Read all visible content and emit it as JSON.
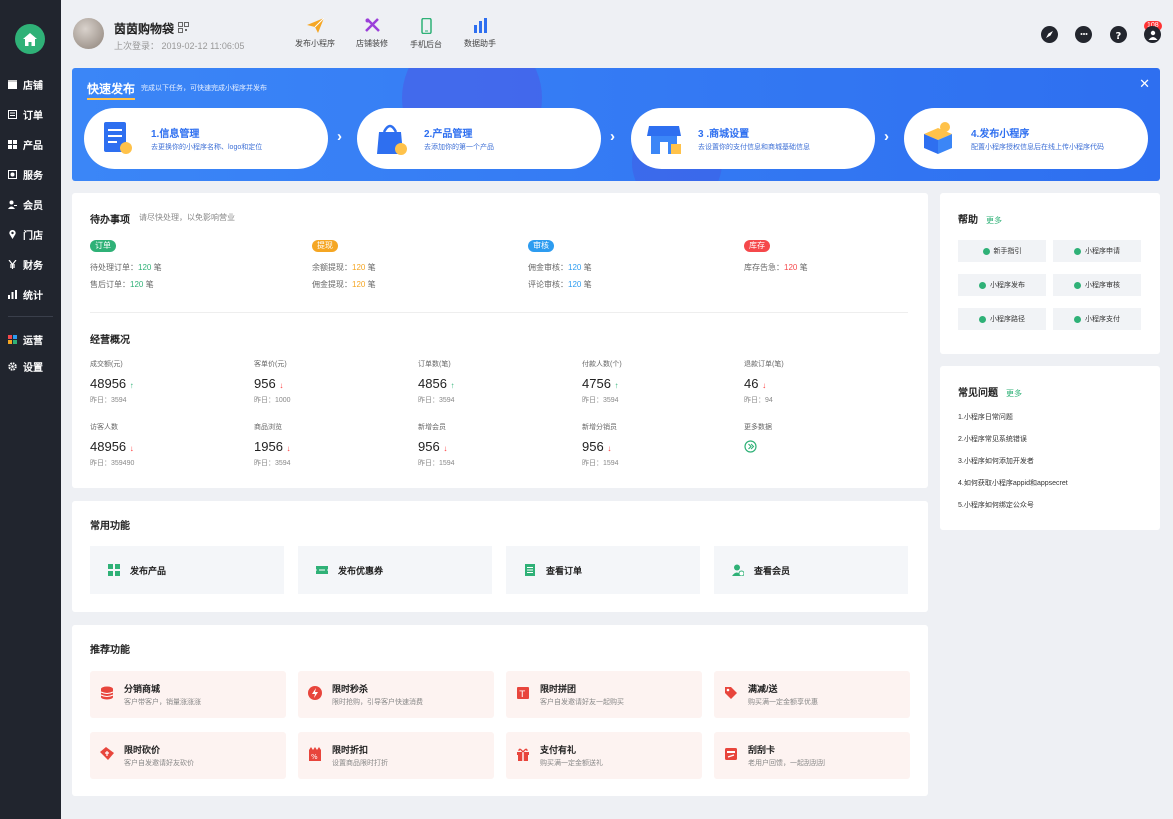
{
  "app": {
    "store_name": "茵茵购物袋",
    "last_login_label": "上次登录：",
    "last_login_time": "2019-02-12 11:06:05"
  },
  "sidebar": {
    "items": [
      {
        "label": "店铺"
      },
      {
        "label": "订单"
      },
      {
        "label": "产品"
      },
      {
        "label": "服务"
      },
      {
        "label": "会员"
      },
      {
        "label": "门店"
      },
      {
        "label": "财务"
      },
      {
        "label": "统计"
      },
      {
        "label": "运营"
      },
      {
        "label": "设置"
      }
    ]
  },
  "toolbar": {
    "items": [
      {
        "label": "发布小程序",
        "icon": "send-icon"
      },
      {
        "label": "店铺装修",
        "icon": "tools-icon"
      },
      {
        "label": "手机后台",
        "icon": "phone-icon"
      },
      {
        "label": "数据助手",
        "icon": "bar-chart-icon"
      }
    ],
    "message_badge": "108"
  },
  "banner": {
    "title": "快速发布",
    "subtitle": "完成以下任务，可快速完成小程序并发布",
    "close": "✕",
    "steps": [
      {
        "title": "1.信息管理",
        "desc": "去更换你的小程序名称、logo和定位"
      },
      {
        "title": "2.产品管理",
        "desc": "去添加你的第一个产品"
      },
      {
        "title": "3 .商城设置",
        "desc": "去设置你的支付信息和商城基础信息"
      },
      {
        "title": "4.发布小程序",
        "desc": "配置小程序授权信息后在线上传小程序代码"
      }
    ]
  },
  "todo": {
    "title": "待办事项",
    "hint": "请尽快处理，以免影响营业",
    "groups": [
      {
        "tag": "订单",
        "lines": [
          {
            "label": "待处理订单：",
            "value": "120",
            "unit": " 笔"
          },
          {
            "label": "售后订单：",
            "value": "120",
            "unit": " 笔"
          }
        ]
      },
      {
        "tag": "提现",
        "lines": [
          {
            "label": "余额提现：",
            "value": "120",
            "unit": " 笔"
          },
          {
            "label": "佣金提现：",
            "value": "120",
            "unit": " 笔"
          }
        ]
      },
      {
        "tag": "审核",
        "lines": [
          {
            "label": "佣金审核：",
            "value": "120",
            "unit": " 笔"
          },
          {
            "label": "评论审核：",
            "value": "120",
            "unit": " 笔"
          }
        ]
      },
      {
        "tag": "库存",
        "lines": [
          {
            "label": "库存告急：",
            "value": "120",
            "unit": " 笔"
          }
        ]
      }
    ]
  },
  "overview": {
    "title": "经营概况",
    "stats": [
      {
        "label": "成交额(元)",
        "value": "48956",
        "trend": "up",
        "yesterday": "昨日：3594"
      },
      {
        "label": "客单价(元)",
        "value": "956",
        "trend": "down",
        "yesterday": "昨日：1000"
      },
      {
        "label": "订单数(笔)",
        "value": "4856",
        "trend": "up",
        "yesterday": "昨日：3594"
      },
      {
        "label": "付款人数(个)",
        "value": "4756",
        "trend": "up",
        "yesterday": "昨日：3594"
      },
      {
        "label": "退款订单(笔)",
        "value": "46",
        "trend": "down",
        "yesterday": "昨日：94"
      },
      {
        "label": "访客人数",
        "value": "48956",
        "trend": "down",
        "yesterday": "昨日：359490"
      },
      {
        "label": "商品浏览",
        "value": "1956",
        "trend": "down",
        "yesterday": "昨日：3594"
      },
      {
        "label": "新增会员",
        "value": "956",
        "trend": "down",
        "yesterday": "昨日：1594"
      },
      {
        "label": "新增分销员",
        "value": "956",
        "trend": "down",
        "yesterday": "昨日：1594"
      }
    ],
    "more_label": "更多数据"
  },
  "common": {
    "title": "常用功能",
    "items": [
      {
        "label": "发布产品",
        "icon": "grid-icon"
      },
      {
        "label": "发布优惠券",
        "icon": "coupon-icon"
      },
      {
        "label": "查看订单",
        "icon": "list-icon"
      },
      {
        "label": "查看会员",
        "icon": "user-check-icon"
      }
    ]
  },
  "recommend": {
    "title": "推荐功能",
    "items": [
      {
        "title": "分销商城",
        "desc": "客户带客户，销量涨涨涨"
      },
      {
        "title": "限时秒杀",
        "desc": "限时抢购，引导客户快速消费"
      },
      {
        "title": "限时拼团",
        "desc": "客户自发邀请好友一起购买"
      },
      {
        "title": "满减/送",
        "desc": "购买满一定金额享优惠"
      },
      {
        "title": "限时砍价",
        "desc": "客户自发邀请好友砍价"
      },
      {
        "title": "限时折扣",
        "desc": "设置商品限时打折"
      },
      {
        "title": "支付有礼",
        "desc": "购买满一定金额送礼"
      },
      {
        "title": "刮刮卡",
        "desc": "老用户回馈，一起刮刮刮"
      }
    ]
  },
  "help": {
    "title": "帮助",
    "more": "更多",
    "items": [
      "新手指引",
      "小程序申请",
      "小程序发布",
      "小程序审核",
      "小程序路径",
      "小程序支付"
    ]
  },
  "faq": {
    "title": "常见问题",
    "more": "更多",
    "items": [
      "1.小程序日常问题",
      "2.小程序常见系统错误",
      "3.小程序如何添加开发者",
      "4.如何获取小程序appid和appsecret",
      "5.小程序如何绑定公众号"
    ]
  },
  "colors": {
    "accent": "#2fb177",
    "banner": "#3b86f7",
    "danger": "#ff3333",
    "todo_order": "#2fb177",
    "todo_withdraw": "#f5a623",
    "todo_audit": "#2d9cf0",
    "todo_stock": "#f5484b"
  }
}
